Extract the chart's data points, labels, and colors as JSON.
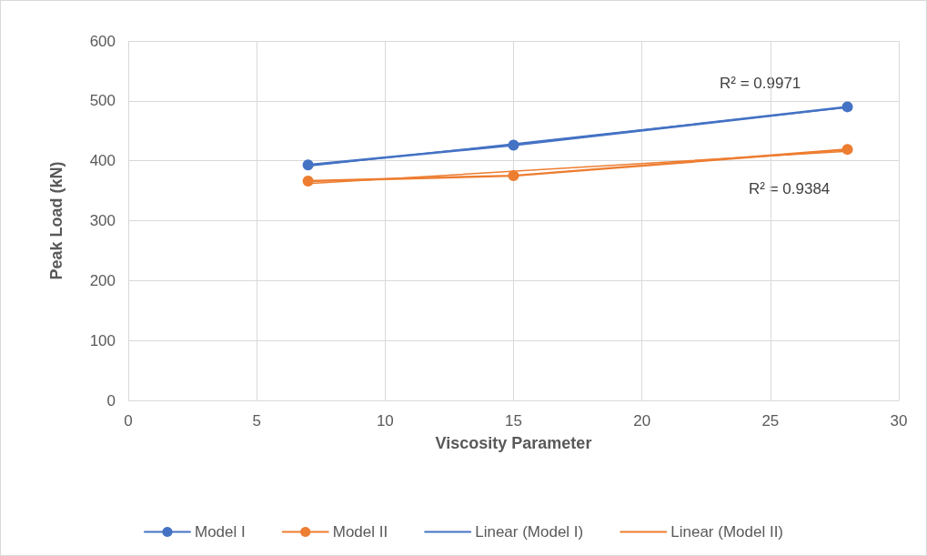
{
  "chart_data": {
    "type": "line",
    "xlabel": "Viscosity Parameter",
    "ylabel": "Peak Load (kN)",
    "xlim": [
      0,
      30
    ],
    "xticks": [
      0,
      5,
      10,
      15,
      20,
      25,
      30
    ],
    "ylim": [
      0,
      600
    ],
    "yticks": [
      0,
      100,
      200,
      300,
      400,
      500,
      600
    ],
    "grid": true,
    "legend": "bottom",
    "marker": "circle",
    "line_style": "solid",
    "series": [
      {
        "name": "Model I",
        "color": "#4472c4",
        "x": [
          7,
          15,
          28
        ],
        "values": [
          393,
          426,
          490
        ]
      },
      {
        "name": "Model II",
        "color": "#ed7d31",
        "x": [
          7,
          15,
          28
        ],
        "values": [
          366,
          375,
          419
        ]
      },
      {
        "name": "Linear (Model I)",
        "color": "#4472c4",
        "x": [
          7,
          28
        ],
        "values": [
          391,
          489
        ],
        "marker": "none"
      },
      {
        "name": "Linear (Model II)",
        "color": "#ed7d31",
        "x": [
          7,
          28
        ],
        "values": [
          362,
          416
        ],
        "marker": "none"
      }
    ],
    "annotations": [
      "R² = 0.9971",
      "R² = 0.9384"
    ]
  }
}
